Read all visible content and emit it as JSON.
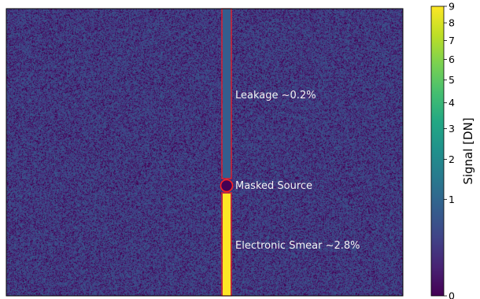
{
  "chart_data": {
    "type": "heatmap",
    "title": "",
    "colormap": "viridis",
    "colorbar": {
      "label": "Signal [DN]",
      "scale": "sqrt",
      "range": [
        0,
        9
      ],
      "ticks": [
        0,
        1,
        2,
        3,
        4,
        5,
        6,
        7,
        8,
        9
      ]
    },
    "background_noise_level": 0.3,
    "columns": [
      {
        "name": "leakage",
        "signal": 0.8
      },
      {
        "name": "masked_source",
        "signal": 0.0
      },
      {
        "name": "electronic_smear",
        "signal": 9
      }
    ],
    "annotations": [
      {
        "id": "leakage",
        "text": "Leakage ~0.2%"
      },
      {
        "id": "masked-source",
        "text": "Masked Source"
      },
      {
        "id": "electronic-smear",
        "text": "Electronic Smear ~2.8%"
      }
    ],
    "colors": {
      "box_outline": "#ff2020",
      "annotation_text": "#f2f2f2"
    }
  }
}
